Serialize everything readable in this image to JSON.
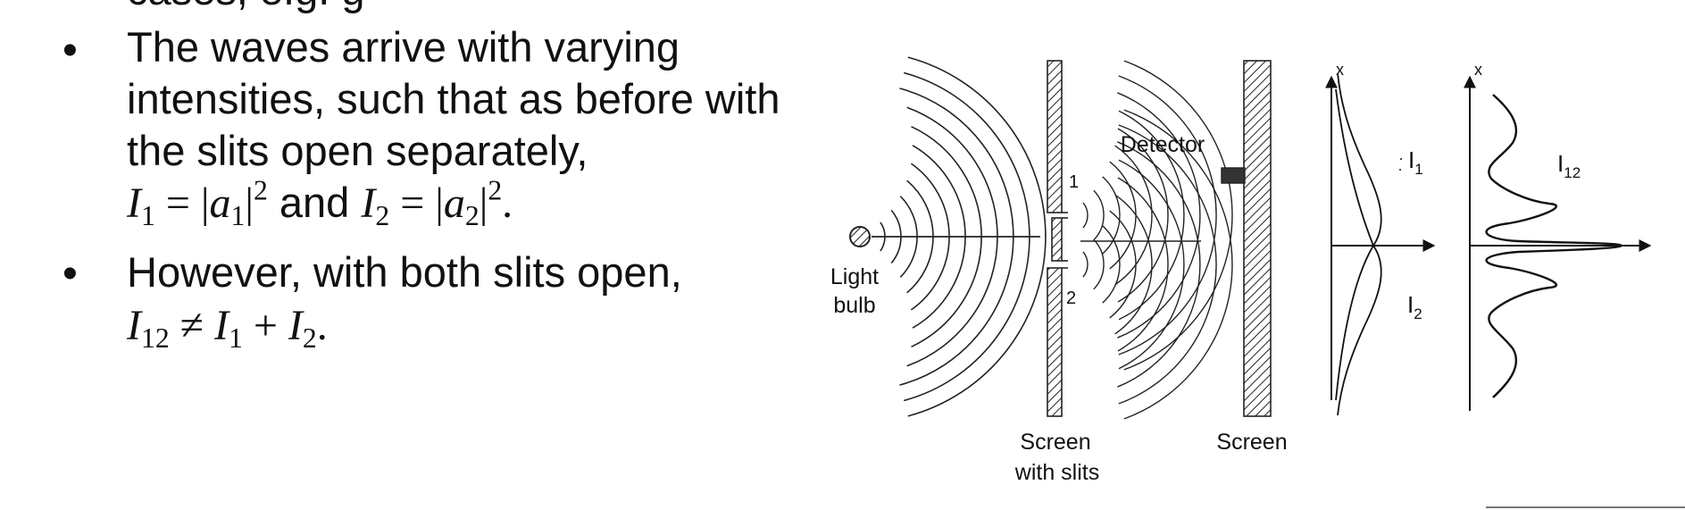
{
  "slide": {
    "prev_line_fragment": "cases, e.g. g",
    "bullet_symbol": "•",
    "bullet1": {
      "lines": [
        "The waves arrive with varying",
        "intensities, such that as before with",
        "the slits open separately,"
      ],
      "eq_I1": "I",
      "eq_I1_sub": "1",
      "eq_eq1": " = |",
      "eq_a1": "a",
      "eq_a1_sub": "1",
      "eq_sq1_bar": "|",
      "eq_sq1": "2",
      "eq_and": " and ",
      "eq_I2": "I",
      "eq_I2_sub": "2",
      "eq_eq2": " = |",
      "eq_a2": "a",
      "eq_a2_sub": "2",
      "eq_sq2_bar": "|",
      "eq_sq2": "2",
      "eq_end": "."
    },
    "bullet2": {
      "line": "However, with both slits open,",
      "eq_I12": "I",
      "eq_I12_sub": "12",
      "eq_neq": " ≠ ",
      "eq_I1": "I",
      "eq_I1_sub": "1",
      "eq_plus": " + ",
      "eq_I2": "I",
      "eq_I2_sub": "2",
      "eq_end": "."
    }
  },
  "diagram": {
    "light_bulb_label": [
      "Light",
      "bulb"
    ],
    "slit_labels": [
      "1",
      "2"
    ],
    "detector_label": "Detector",
    "screen_with_slits_label": [
      "Screen",
      "with slits"
    ],
    "screen_label": "Screen",
    "axis_label": "x",
    "curve_labels": {
      "I1": {
        "base": "I",
        "sub": "1"
      },
      "I2": {
        "base": "I",
        "sub": "2"
      },
      "I12": {
        "base": "I",
        "sub": "12"
      }
    }
  }
}
